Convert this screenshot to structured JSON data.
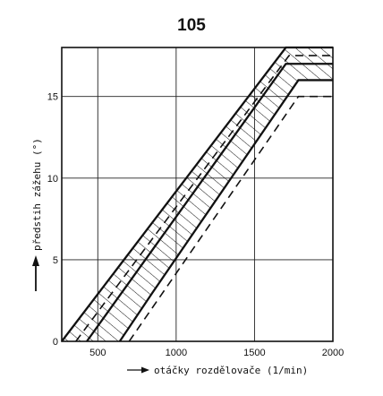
{
  "page": {
    "number": "105"
  },
  "chart_data": {
    "type": "line",
    "xlabel": "otáčky rozdělovače (1/min)",
    "ylabel": "předstih zážehu (°)",
    "xlim": [
      270,
      2000
    ],
    "ylim": [
      0,
      18
    ],
    "xticks": [
      500,
      1000,
      1500,
      2000
    ],
    "yticks": [
      0,
      5,
      10,
      15
    ],
    "grid": true,
    "series": [
      {
        "style": "solid-thick",
        "x": [
          270,
          1700,
          2000
        ],
        "y": [
          0,
          18,
          18
        ]
      },
      {
        "style": "solid-thick",
        "x": [
          430,
          1700,
          2000
        ],
        "y": [
          0,
          17,
          17
        ]
      },
      {
        "style": "dashed",
        "x": [
          360,
          1720,
          2000
        ],
        "y": [
          0,
          17.5,
          17.5
        ]
      },
      {
        "style": "solid-thick",
        "x": [
          640,
          850,
          1780,
          2000
        ],
        "y": [
          0,
          3,
          16,
          16
        ]
      },
      {
        "style": "dashed",
        "x": [
          700,
          1780,
          2000
        ],
        "y": [
          0,
          15,
          15
        ]
      }
    ],
    "hatched_band": {
      "upper_series": 0,
      "lower_series": 3
    }
  }
}
